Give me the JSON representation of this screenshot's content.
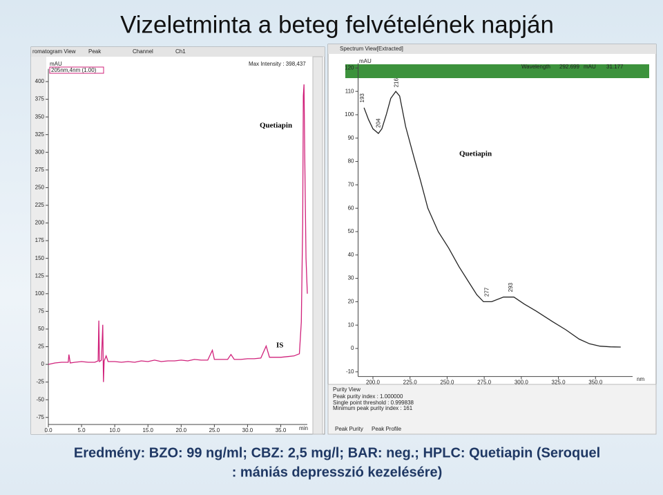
{
  "title": "Vizeletminta a beteg felvételének napján",
  "caption": [
    "Eredmény: BZO: 99 ng/ml; CBZ: 2,5 mg/l; BAR: neg.; HPLC: Quetiapin (Seroquel",
    ": mániás depresszió kezelésére)"
  ],
  "chart_data": [
    {
      "type": "line",
      "window_title": "romatogram View",
      "toolbar": [
        "Peak",
        "Channel",
        "Ch1"
      ],
      "info": "Max Intensity : 398,437",
      "y_label": "mAU",
      "x_label": "min",
      "annotations": [
        "Quetiapin",
        "IS"
      ],
      "x": [
        0,
        1,
        2,
        3,
        3.1,
        3.3,
        4,
        5,
        6,
        7,
        7.5,
        7.6,
        7.7,
        8,
        8.2,
        8.3,
        8.4,
        8.7,
        9,
        10,
        11,
        12,
        13,
        14,
        15,
        16,
        17,
        18,
        19,
        20,
        21,
        22,
        23,
        24,
        24.7,
        25,
        26,
        27,
        27.5,
        28,
        29,
        30,
        31,
        32,
        32.8,
        33.3,
        34,
        35,
        36,
        37,
        37.8,
        38.1,
        38.3,
        38.4,
        38.5,
        38.6,
        38.8,
        39
      ],
      "series": [
        {
          "name": "205nm,4nm (1.00)",
          "color": "#d0207a",
          "values": [
            0,
            2,
            3,
            3,
            14,
            2,
            3,
            4,
            3,
            3,
            5,
            62,
            4,
            6,
            56,
            -25,
            5,
            12,
            4,
            4,
            3,
            4,
            3,
            5,
            4,
            6,
            4,
            5,
            5,
            6,
            5,
            7,
            6,
            6,
            20,
            7,
            7,
            7,
            14,
            7,
            7,
            8,
            8,
            9,
            26,
            10,
            10,
            10,
            11,
            12,
            15,
            60,
            200,
            380,
            396,
            300,
            150,
            100
          ]
        }
      ],
      "xlim": [
        0,
        39
      ],
      "ylim": [
        -85,
        418
      ],
      "xticks": [
        {
          "value": 0,
          "label": "0.0"
        },
        {
          "value": 5,
          "label": "5.0"
        },
        {
          "value": 10,
          "label": "10.0"
        },
        {
          "value": 15,
          "label": "15.0"
        },
        {
          "value": 20,
          "label": "20.0"
        },
        {
          "value": 25,
          "label": "25.0"
        },
        {
          "value": 30,
          "label": "30.0"
        },
        {
          "value": 35,
          "label": "35.0"
        }
      ],
      "yticks": [
        -75,
        -50,
        -25,
        0,
        25,
        50,
        75,
        100,
        125,
        150,
        175,
        200,
        225,
        250,
        275,
        300,
        325,
        350,
        375,
        400
      ]
    },
    {
      "type": "line",
      "window_title": "Spectrum View[Extracted]",
      "info": [
        "Wavelength",
        "292.699",
        "mAU",
        "31.177"
      ],
      "y_label": "mAU",
      "x_label": "nm",
      "annotations": [
        "Quetiapin"
      ],
      "x": [
        194,
        197,
        200,
        203.7,
        206,
        209,
        212,
        215.4,
        218,
        222,
        228,
        232,
        237,
        244,
        251,
        258,
        265,
        270,
        274.5,
        280,
        288,
        295,
        302,
        310,
        321,
        330,
        339,
        346,
        353,
        360,
        367
      ],
      "series": [
        {
          "color": "#222222",
          "values": [
            103,
            98,
            94,
            92,
            94,
            100,
            107,
            110,
            108,
            95,
            81,
            72,
            60,
            50,
            43,
            35,
            28,
            23,
            20,
            20,
            22,
            22,
            19,
            16,
            11.5,
            8,
            4,
            2,
            1,
            0.7,
            0.6
          ]
        }
      ],
      "peak_labels": [
        193,
        204,
        216,
        277,
        293
      ],
      "xlim": [
        190,
        375
      ],
      "ylim": [
        -12,
        122
      ],
      "xticks": [
        {
          "value": 200,
          "label": "200.0"
        },
        {
          "value": 225,
          "label": "225.0"
        },
        {
          "value": 250,
          "label": "250.0"
        },
        {
          "value": 275,
          "label": "275.0"
        },
        {
          "value": 300,
          "label": "300.0"
        },
        {
          "value": 325,
          "label": "325.0"
        },
        {
          "value": 350,
          "label": "350.0"
        }
      ],
      "yticks": [
        -10,
        0,
        10,
        20,
        30,
        40,
        50,
        60,
        70,
        80,
        90,
        100,
        110,
        120
      ],
      "purity": {
        "title": "Purity View",
        "lines": [
          "Peak purity index : 1.000000",
          "Single point threshold : 0.999838",
          "Minimum peak purity index : 161"
        ],
        "tabs": [
          "Peak Purity",
          "Peak Profile"
        ]
      }
    }
  ]
}
